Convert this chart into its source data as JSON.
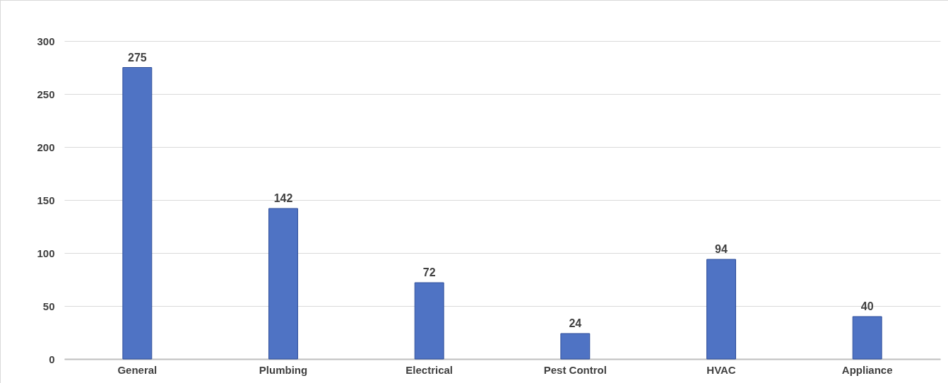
{
  "chart_data": {
    "type": "bar",
    "categories": [
      "General",
      "Plumbing",
      "Electrical",
      "Pest Control",
      "HVAC",
      "Appliance"
    ],
    "values": [
      275,
      142,
      72,
      24,
      94,
      40
    ],
    "color": "#4f73c4",
    "ylim": [
      0,
      300
    ],
    "yticks": [
      0,
      50,
      100,
      150,
      200,
      250,
      300
    ],
    "grid": "y",
    "data_labels": true
  }
}
